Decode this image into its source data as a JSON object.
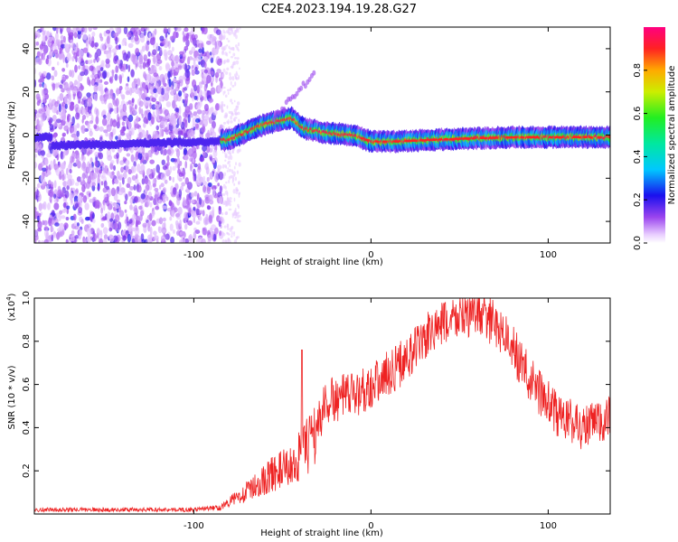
{
  "figure": {
    "title": "C2E4.2023.194.19.28.G27"
  },
  "chart_data": [
    {
      "type": "heatmap",
      "xlabel": "Height of straight line (km)",
      "ylabel": "Frequency (Hz)",
      "xlim": [
        -190,
        135
      ],
      "ylim": [
        -50,
        50
      ],
      "xticks": [
        -100,
        0,
        100
      ],
      "yticks": [
        -40,
        -20,
        0,
        20,
        40
      ],
      "colorbar": {
        "label": "Normalized spectral amplitude",
        "range": [
          0,
          1
        ],
        "ticks": [
          0.0,
          0.2,
          0.4,
          0.6,
          0.8
        ]
      },
      "ridge": [
        {
          "x": -180,
          "y": -5
        },
        {
          "x": -90,
          "y": -3
        },
        {
          "x": -80,
          "y": -2
        },
        {
          "x": -60,
          "y": 5
        },
        {
          "x": -45,
          "y": 8
        },
        {
          "x": -38,
          "y": 3
        },
        {
          "x": -25,
          "y": 1
        },
        {
          "x": -10,
          "y": 0
        },
        {
          "x": 0,
          "y": -3
        },
        {
          "x": 15,
          "y": -3
        },
        {
          "x": 40,
          "y": -2
        },
        {
          "x": 80,
          "y": -1
        },
        {
          "x": 132,
          "y": -1
        }
      ]
    },
    {
      "type": "line",
      "xlabel": "Height of straight line (km)",
      "ylabel": "SNR (10 * v/v)",
      "y_multiplier": "(x10",
      "y_multiplier_exp": "4",
      "y_multiplier_close": ")",
      "xlim": [
        -190,
        135
      ],
      "ylim": [
        0,
        1.0
      ],
      "xticks": [
        -100,
        0,
        100
      ],
      "yticks": [
        0.2,
        0.4,
        0.6,
        0.8,
        1.0
      ],
      "color": "#ee2222",
      "series": [
        {
          "envelope": [
            {
              "x": -190,
              "y": 0.02
            },
            {
              "x": -100,
              "y": 0.02
            },
            {
              "x": -85,
              "y": 0.03
            },
            {
              "x": -75,
              "y": 0.08
            },
            {
              "x": -65,
              "y": 0.13
            },
            {
              "x": -55,
              "y": 0.19
            },
            {
              "x": -45,
              "y": 0.22
            },
            {
              "x": -35,
              "y": 0.32
            },
            {
              "x": -25,
              "y": 0.52
            },
            {
              "x": -10,
              "y": 0.55
            },
            {
              "x": 5,
              "y": 0.62
            },
            {
              "x": 20,
              "y": 0.72
            },
            {
              "x": 35,
              "y": 0.85
            },
            {
              "x": 50,
              "y": 0.92
            },
            {
              "x": 62,
              "y": 0.93
            },
            {
              "x": 75,
              "y": 0.84
            },
            {
              "x": 90,
              "y": 0.62
            },
            {
              "x": 105,
              "y": 0.46
            },
            {
              "x": 120,
              "y": 0.4
            },
            {
              "x": 135,
              "y": 0.44
            }
          ]
        }
      ]
    }
  ]
}
